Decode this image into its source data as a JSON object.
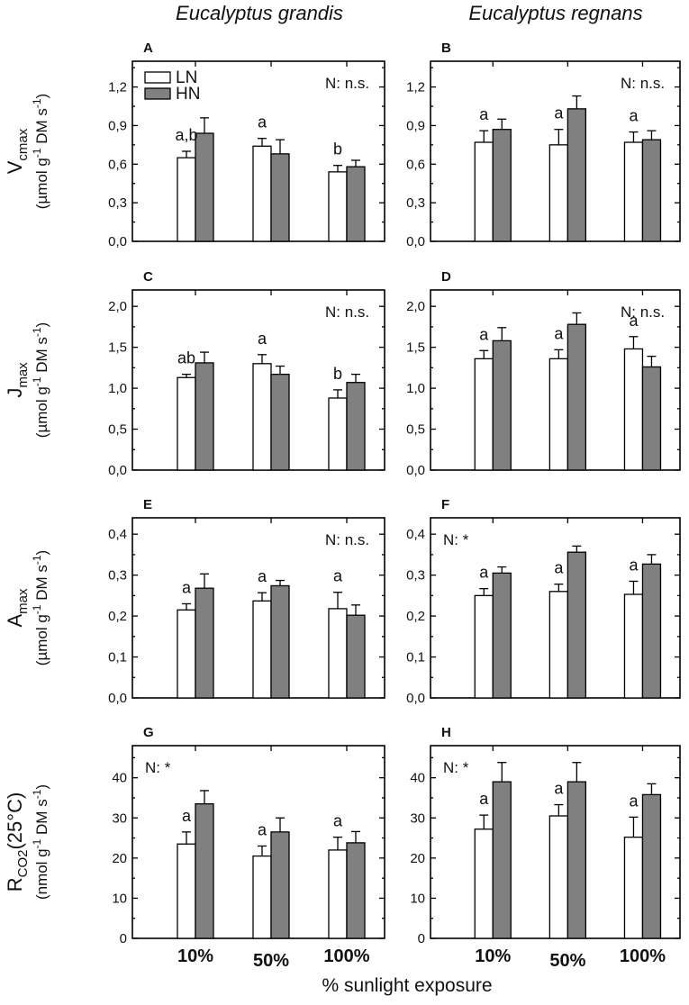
{
  "figure": {
    "column_titles": [
      "Eucalyptus grandis",
      "Eucalyptus regnans"
    ],
    "x_categories": [
      "10%",
      "50%",
      "100%"
    ],
    "x_label": "% sunlight exposure",
    "legend": [
      {
        "name": "LN",
        "color": "#ffffff"
      },
      {
        "name": "HN",
        "color": "#808080"
      }
    ],
    "rows": [
      {
        "ylabel_main": "V",
        "ylabel_sub": "cmax",
        "ylabel_unit_pre": "(µmol g",
        "ylabel_unit_sup1": "-1",
        "ylabel_unit_mid": " DM s",
        "ylabel_unit_sup2": "-1",
        "ylabel_unit_post": ")"
      },
      {
        "ylabel_main": "J",
        "ylabel_sub": "max",
        "ylabel_unit_pre": "(µmol g",
        "ylabel_unit_sup1": "-1",
        "ylabel_unit_mid": " DM s",
        "ylabel_unit_sup2": "-1",
        "ylabel_unit_post": ")"
      },
      {
        "ylabel_main": "A",
        "ylabel_sub": "max",
        "ylabel_unit_pre": "(µmol g",
        "ylabel_unit_sup1": "-1",
        "ylabel_unit_mid": " DM s",
        "ylabel_unit_sup2": "-1",
        "ylabel_unit_post": ")"
      },
      {
        "ylabel_main": "R",
        "ylabel_sub": "CO2",
        "ylabel_suffix": "(25°C)",
        "ylabel_unit_pre": "(nmol g",
        "ylabel_unit_sup1": "-1",
        "ylabel_unit_mid": " DM s",
        "ylabel_unit_sup2": "-1",
        "ylabel_unit_post": ")"
      }
    ]
  },
  "chart_data": [
    {
      "panel": "A",
      "type": "bar",
      "ylim": [
        0,
        1.4
      ],
      "ticks": [
        "0,0",
        "0,3",
        "0,6",
        "0,9",
        "1,2"
      ],
      "tick_values": [
        0,
        0.3,
        0.6,
        0.9,
        1.2
      ],
      "categories": [
        "10%",
        "50%",
        "100%"
      ],
      "series": [
        {
          "name": "LN",
          "values": [
            0.65,
            0.74,
            0.54
          ],
          "errors": [
            0.05,
            0.06,
            0.05
          ]
        },
        {
          "name": "HN",
          "values": [
            0.84,
            0.68,
            0.58
          ],
          "errors": [
            0.12,
            0.11,
            0.05
          ]
        }
      ],
      "letters": [
        "a,b",
        "a",
        "b"
      ],
      "annotation": "N: n.s.",
      "annotation_pos": "top-right",
      "legend": true
    },
    {
      "panel": "B",
      "type": "bar",
      "ylim": [
        0,
        1.4
      ],
      "ticks": [
        "0,0",
        "0,3",
        "0,6",
        "0,9",
        "1,2"
      ],
      "tick_values": [
        0,
        0.3,
        0.6,
        0.9,
        1.2
      ],
      "categories": [
        "10%",
        "50%",
        "100%"
      ],
      "series": [
        {
          "name": "LN",
          "values": [
            0.77,
            0.75,
            0.77
          ],
          "errors": [
            0.09,
            0.12,
            0.08
          ]
        },
        {
          "name": "HN",
          "values": [
            0.87,
            1.03,
            0.79
          ],
          "errors": [
            0.08,
            0.1,
            0.07
          ]
        }
      ],
      "letters": [
        "a",
        "a",
        "a"
      ],
      "annotation": "N: n.s.",
      "annotation_pos": "top-right"
    },
    {
      "panel": "C",
      "type": "bar",
      "ylim": [
        0,
        2.2
      ],
      "ticks": [
        "0,0",
        "0,5",
        "1,0",
        "1,5",
        "2,0"
      ],
      "tick_values": [
        0,
        0.5,
        1.0,
        1.5,
        2.0
      ],
      "categories": [
        "10%",
        "50%",
        "100%"
      ],
      "series": [
        {
          "name": "LN",
          "values": [
            1.13,
            1.3,
            0.88
          ],
          "errors": [
            0.04,
            0.11,
            0.1
          ]
        },
        {
          "name": "HN",
          "values": [
            1.31,
            1.17,
            1.07
          ],
          "errors": [
            0.13,
            0.1,
            0.1
          ]
        }
      ],
      "letters": [
        "ab",
        "a",
        "b"
      ],
      "annotation": "N: n.s.",
      "annotation_pos": "top-right"
    },
    {
      "panel": "D",
      "type": "bar",
      "ylim": [
        0,
        2.2
      ],
      "ticks": [
        "0,0",
        "0,5",
        "1,0",
        "1,5",
        "2,0"
      ],
      "tick_values": [
        0,
        0.5,
        1.0,
        1.5,
        2.0
      ],
      "categories": [
        "10%",
        "50%",
        "100%"
      ],
      "series": [
        {
          "name": "LN",
          "values": [
            1.36,
            1.36,
            1.48
          ],
          "errors": [
            0.1,
            0.11,
            0.15
          ]
        },
        {
          "name": "HN",
          "values": [
            1.58,
            1.78,
            1.26
          ],
          "errors": [
            0.16,
            0.14,
            0.13
          ]
        }
      ],
      "letters": [
        "a",
        "a",
        "a"
      ],
      "annotation": "N: n.s.",
      "annotation_pos": "top-right"
    },
    {
      "panel": "E",
      "type": "bar",
      "ylim": [
        0,
        0.44
      ],
      "ticks": [
        "0,0",
        "0,1",
        "0,2",
        "0,3",
        "0,4"
      ],
      "tick_values": [
        0,
        0.1,
        0.2,
        0.3,
        0.4
      ],
      "categories": [
        "10%",
        "50%",
        "100%"
      ],
      "series": [
        {
          "name": "LN",
          "values": [
            0.215,
            0.237,
            0.218
          ],
          "errors": [
            0.015,
            0.02,
            0.04
          ]
        },
        {
          "name": "HN",
          "values": [
            0.268,
            0.274,
            0.202
          ],
          "errors": [
            0.035,
            0.013,
            0.025
          ]
        }
      ],
      "letters": [
        "a",
        "a",
        "a"
      ],
      "annotation": "N: n.s.",
      "annotation_pos": "top-right"
    },
    {
      "panel": "F",
      "type": "bar",
      "ylim": [
        0,
        0.44
      ],
      "ticks": [
        "0,0",
        "0,1",
        "0,2",
        "0,3",
        "0,4"
      ],
      "tick_values": [
        0,
        0.1,
        0.2,
        0.3,
        0.4
      ],
      "categories": [
        "10%",
        "50%",
        "100%"
      ],
      "series": [
        {
          "name": "LN",
          "values": [
            0.25,
            0.26,
            0.253
          ],
          "errors": [
            0.017,
            0.018,
            0.032
          ]
        },
        {
          "name": "HN",
          "values": [
            0.305,
            0.356,
            0.327
          ],
          "errors": [
            0.015,
            0.015,
            0.023
          ]
        }
      ],
      "letters": [
        "a",
        "a",
        "a"
      ],
      "annotation": "N: *",
      "annotation_pos": "top-left"
    },
    {
      "panel": "G",
      "type": "bar",
      "ylim": [
        0,
        48
      ],
      "ticks": [
        "0",
        "10",
        "20",
        "30",
        "40"
      ],
      "tick_values": [
        0,
        10,
        20,
        30,
        40
      ],
      "categories": [
        "10%",
        "50%",
        "100%"
      ],
      "series": [
        {
          "name": "LN",
          "values": [
            23.5,
            20.5,
            22
          ],
          "errors": [
            3,
            2.5,
            3.2
          ]
        },
        {
          "name": "HN",
          "values": [
            33.5,
            26.5,
            23.8
          ],
          "errors": [
            3.3,
            3.5,
            2.8
          ]
        }
      ],
      "letters": [
        "a",
        "a",
        "a"
      ],
      "annotation": "N: *",
      "annotation_pos": "top-left"
    },
    {
      "panel": "H",
      "type": "bar",
      "ylim": [
        0,
        48
      ],
      "ticks": [
        "0",
        "10",
        "20",
        "30",
        "40"
      ],
      "tick_values": [
        0,
        10,
        20,
        30,
        40
      ],
      "categories": [
        "10%",
        "50%",
        "100%"
      ],
      "series": [
        {
          "name": "LN",
          "values": [
            27.2,
            30.5,
            25.2
          ],
          "errors": [
            3.5,
            2.8,
            5
          ]
        },
        {
          "name": "HN",
          "values": [
            39,
            39,
            35.8
          ],
          "errors": [
            4.8,
            4.8,
            2.7
          ]
        }
      ],
      "letters": [
        "a",
        "a",
        "a"
      ],
      "annotation": "N: *",
      "annotation_pos": "top-left"
    }
  ]
}
